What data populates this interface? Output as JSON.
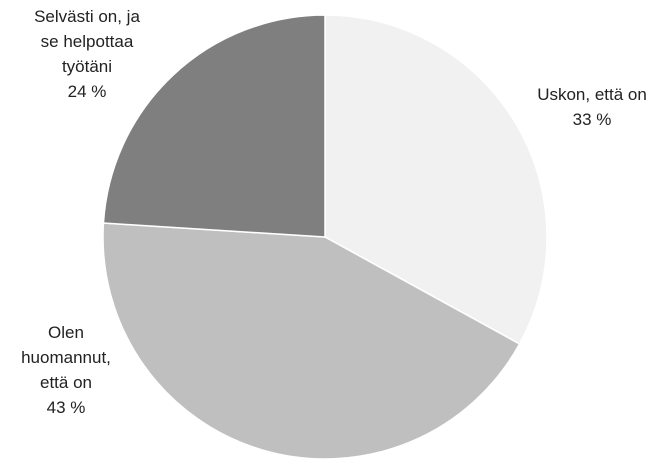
{
  "chart_data": {
    "type": "pie",
    "title": "",
    "slices": [
      {
        "label_lines": [
          "Uskon, että on"
        ],
        "value_text": "33 %",
        "value": 33,
        "color": "#f1f1f1"
      },
      {
        "label_lines": [
          "Olen",
          "huomannut,",
          "että on"
        ],
        "value_text": "43 %",
        "value": 43,
        "color": "#bfbfbf"
      },
      {
        "label_lines": [
          "Selvästi on, ja",
          "se helpottaa",
          "työtäni"
        ],
        "value_text": "24 %",
        "value": 24,
        "color": "#7f7f7f"
      }
    ],
    "start_angle": "12 o'clock",
    "direction": "clockwise",
    "border_color": "#ffffff",
    "legend": "none"
  }
}
